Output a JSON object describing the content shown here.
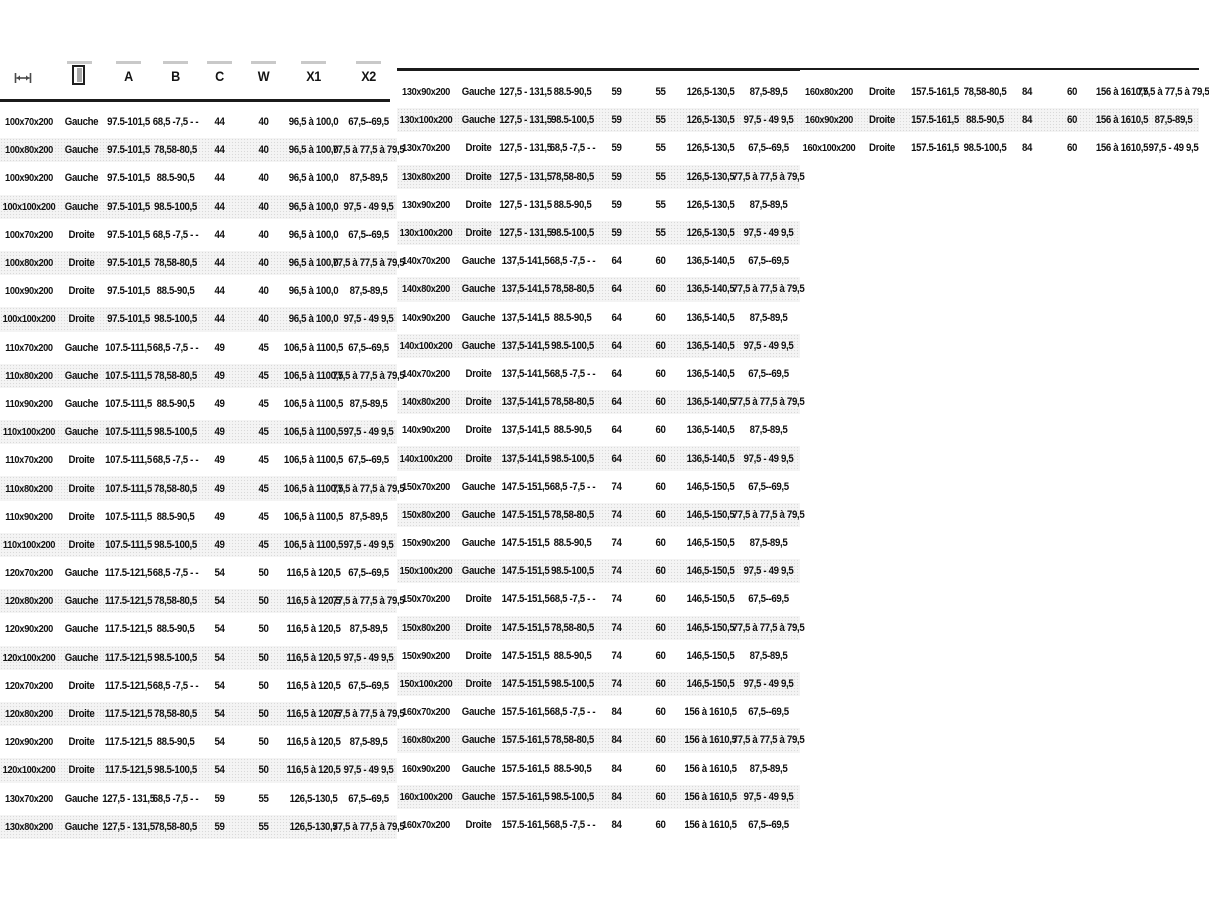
{
  "page": {
    "background": "#ffffff"
  },
  "colors": {
    "rule": "#1b1b1b",
    "stripe": "#f4f4f4",
    "text": "#101010",
    "header_bar": "#c9c9c9"
  },
  "table": {
    "header": {
      "icons": [
        "width-measure-icon",
        "door-icon"
      ],
      "labels": [
        "A",
        "B",
        "C",
        "W",
        "X1",
        "X2"
      ]
    },
    "column_ids": [
      "size",
      "side",
      "a",
      "b",
      "c",
      "w",
      "x1",
      "x2"
    ],
    "panels": [
      {
        "id": "left",
        "has_header": true,
        "rows": [
          [
            "100x70x200",
            "Gauche",
            "97.5-101,5",
            "68,5 -7,5 - -",
            "44",
            "40",
            "96,5 à 100,0",
            "67,5--69,5"
          ],
          [
            "100x80x200",
            "Gauche",
            "97.5-101,5",
            "78,58-80,5",
            "44",
            "40",
            "96,5 à 100,0",
            "77,5 à 77,5 à 79,5"
          ],
          [
            "100x90x200",
            "Gauche",
            "97.5-101,5",
            "88.5-90,5",
            "44",
            "40",
            "96,5 à 100,0",
            "87,5-89,5"
          ],
          [
            "100x100x200",
            "Gauche",
            "97.5-101,5",
            "98.5-100,5",
            "44",
            "40",
            "96,5 à 100,0",
            "97,5 - 49 9,5"
          ],
          [
            "100x70x200",
            "Droite",
            "97.5-101,5",
            "68,5 -7,5 - -",
            "44",
            "40",
            "96,5 à 100,0",
            "67,5--69,5"
          ],
          [
            "100x80x200",
            "Droite",
            "97.5-101,5",
            "78,58-80,5",
            "44",
            "40",
            "96,5 à 100,0",
            "77,5 à 77,5 à 79,5"
          ],
          [
            "100x90x200",
            "Droite",
            "97.5-101,5",
            "88.5-90,5",
            "44",
            "40",
            "96,5 à 100,0",
            "87,5-89,5"
          ],
          [
            "100x100x200",
            "Droite",
            "97.5-101,5",
            "98.5-100,5",
            "44",
            "40",
            "96,5 à 100,0",
            "97,5 - 49 9,5"
          ],
          [
            "110x70x200",
            "Gauche",
            "107.5-111,5",
            "68,5 -7,5 - -",
            "49",
            "45",
            "106,5 à 1100,5",
            "67,5--69,5"
          ],
          [
            "110x80x200",
            "Gauche",
            "107.5-111,5",
            "78,58-80,5",
            "49",
            "45",
            "106,5 à 1100,5",
            "77,5 à 77,5 à 79,5"
          ],
          [
            "110x90x200",
            "Gauche",
            "107.5-111,5",
            "88.5-90,5",
            "49",
            "45",
            "106,5 à 1100,5",
            "87,5-89,5"
          ],
          [
            "110x100x200",
            "Gauche",
            "107.5-111,5",
            "98.5-100,5",
            "49",
            "45",
            "106,5 à 1100,5",
            "97,5 - 49 9,5"
          ],
          [
            "110x70x200",
            "Droite",
            "107.5-111,5",
            "68,5 -7,5 - -",
            "49",
            "45",
            "106,5 à 1100,5",
            "67,5--69,5"
          ],
          [
            "110x80x200",
            "Droite",
            "107.5-111,5",
            "78,58-80,5",
            "49",
            "45",
            "106,5 à 1100,5",
            "77,5 à 77,5 à 79,5"
          ],
          [
            "110x90x200",
            "Droite",
            "107.5-111,5",
            "88.5-90,5",
            "49",
            "45",
            "106,5 à 1100,5",
            "87,5-89,5"
          ],
          [
            "110x100x200",
            "Droite",
            "107.5-111,5",
            "98.5-100,5",
            "49",
            "45",
            "106,5 à 1100,5",
            "97,5 - 49 9,5"
          ],
          [
            "120x70x200",
            "Gauche",
            "117.5-121,5",
            "68,5 -7,5 - -",
            "54",
            "50",
            "116,5 à 120,5",
            "67,5--69,5"
          ],
          [
            "120x80x200",
            "Gauche",
            "117.5-121,5",
            "78,58-80,5",
            "54",
            "50",
            "116,5 à 120,5",
            "77,5 à 77,5 à 79,5"
          ],
          [
            "120x90x200",
            "Gauche",
            "117.5-121,5",
            "88.5-90,5",
            "54",
            "50",
            "116,5 à 120,5",
            "87,5-89,5"
          ],
          [
            "120x100x200",
            "Gauche",
            "117.5-121,5",
            "98.5-100,5",
            "54",
            "50",
            "116,5 à 120,5",
            "97,5 - 49 9,5"
          ],
          [
            "120x70x200",
            "Droite",
            "117.5-121,5",
            "68,5 -7,5 - -",
            "54",
            "50",
            "116,5 à 120,5",
            "67,5--69,5"
          ],
          [
            "120x80x200",
            "Droite",
            "117.5-121,5",
            "78,58-80,5",
            "54",
            "50",
            "116,5 à 120,5",
            "77,5 à 77,5 à 79,5"
          ],
          [
            "120x90x200",
            "Droite",
            "117.5-121,5",
            "88.5-90,5",
            "54",
            "50",
            "116,5 à 120,5",
            "87,5-89,5"
          ],
          [
            "120x100x200",
            "Droite",
            "117.5-121,5",
            "98.5-100,5",
            "54",
            "50",
            "116,5 à 120,5",
            "97,5 - 49 9,5"
          ],
          [
            "130x70x200",
            "Gauche",
            "127,5 - 131,5",
            "68,5 -7,5 - -",
            "59",
            "55",
            "126,5-130,5",
            "67,5--69,5"
          ],
          [
            "130x80x200",
            "Gauche",
            "127,5 - 131,5",
            "78,58-80,5",
            "59",
            "55",
            "126,5-130,5",
            "77,5 à 77,5 à 79,5"
          ]
        ]
      },
      {
        "id": "middle",
        "has_header": false,
        "rows": [
          [
            "130x90x200",
            "Gauche",
            "127,5 - 131,5",
            "88.5-90,5",
            "59",
            "55",
            "126,5-130,5",
            "87,5-89,5"
          ],
          [
            "130x100x200",
            "Gauche",
            "127,5 - 131,5",
            "98.5-100,5",
            "59",
            "55",
            "126,5-130,5",
            "97,5 - 49 9,5"
          ],
          [
            "130x70x200",
            "Droite",
            "127,5 - 131,5",
            "68,5 -7,5 - -",
            "59",
            "55",
            "126,5-130,5",
            "67,5--69,5"
          ],
          [
            "130x80x200",
            "Droite",
            "127,5 - 131,5",
            "78,58-80,5",
            "59",
            "55",
            "126,5-130,5",
            "77,5 à 77,5 à 79,5"
          ],
          [
            "130x90x200",
            "Droite",
            "127,5 - 131,5",
            "88.5-90,5",
            "59",
            "55",
            "126,5-130,5",
            "87,5-89,5"
          ],
          [
            "130x100x200",
            "Droite",
            "127,5 - 131,5",
            "98.5-100,5",
            "59",
            "55",
            "126,5-130,5",
            "97,5 - 49 9,5"
          ],
          [
            "140x70x200",
            "Gauche",
            "137,5-141,5",
            "68,5 -7,5 - -",
            "64",
            "60",
            "136,5-140,5",
            "67,5--69,5"
          ],
          [
            "140x80x200",
            "Gauche",
            "137,5-141,5",
            "78,58-80,5",
            "64",
            "60",
            "136,5-140,5",
            "77,5 à 77,5 à 79,5"
          ],
          [
            "140x90x200",
            "Gauche",
            "137,5-141,5",
            "88.5-90,5",
            "64",
            "60",
            "136,5-140,5",
            "87,5-89,5"
          ],
          [
            "140x100x200",
            "Gauche",
            "137,5-141,5",
            "98.5-100,5",
            "64",
            "60",
            "136,5-140,5",
            "97,5 - 49 9,5"
          ],
          [
            "140x70x200",
            "Droite",
            "137,5-141,5",
            "68,5 -7,5 - -",
            "64",
            "60",
            "136,5-140,5",
            "67,5--69,5"
          ],
          [
            "140x80x200",
            "Droite",
            "137,5-141,5",
            "78,58-80,5",
            "64",
            "60",
            "136,5-140,5",
            "77,5 à 77,5 à 79,5"
          ],
          [
            "140x90x200",
            "Droite",
            "137,5-141,5",
            "88.5-90,5",
            "64",
            "60",
            "136,5-140,5",
            "87,5-89,5"
          ],
          [
            "140x100x200",
            "Droite",
            "137,5-141,5",
            "98.5-100,5",
            "64",
            "60",
            "136,5-140,5",
            "97,5 - 49 9,5"
          ],
          [
            "150x70x200",
            "Gauche",
            "147.5-151,5",
            "68,5 -7,5 - -",
            "74",
            "60",
            "146,5-150,5",
            "67,5--69,5"
          ],
          [
            "150x80x200",
            "Gauche",
            "147.5-151,5",
            "78,58-80,5",
            "74",
            "60",
            "146,5-150,5",
            "77,5 à 77,5 à 79,5"
          ],
          [
            "150x90x200",
            "Gauche",
            "147.5-151,5",
            "88.5-90,5",
            "74",
            "60",
            "146,5-150,5",
            "87,5-89,5"
          ],
          [
            "150x100x200",
            "Gauche",
            "147.5-151,5",
            "98.5-100,5",
            "74",
            "60",
            "146,5-150,5",
            "97,5 - 49 9,5"
          ],
          [
            "150x70x200",
            "Droite",
            "147.5-151,5",
            "68,5 -7,5 - -",
            "74",
            "60",
            "146,5-150,5",
            "67,5--69,5"
          ],
          [
            "150x80x200",
            "Droite",
            "147.5-151,5",
            "78,58-80,5",
            "74",
            "60",
            "146,5-150,5",
            "77,5 à 77,5 à 79,5"
          ],
          [
            "150x90x200",
            "Droite",
            "147.5-151,5",
            "88.5-90,5",
            "74",
            "60",
            "146,5-150,5",
            "87,5-89,5"
          ],
          [
            "150x100x200",
            "Droite",
            "147.5-151,5",
            "98.5-100,5",
            "74",
            "60",
            "146,5-150,5",
            "97,5 - 49 9,5"
          ],
          [
            "160x70x200",
            "Gauche",
            "157.5-161,5",
            "68,5 -7,5 - -",
            "84",
            "60",
            "156 à 1610,5",
            "67,5--69,5"
          ],
          [
            "160x80x200",
            "Gauche",
            "157.5-161,5",
            "78,58-80,5",
            "84",
            "60",
            "156 à 1610,5",
            "77,5 à 77,5 à 79,5"
          ],
          [
            "160x90x200",
            "Gauche",
            "157.5-161,5",
            "88.5-90,5",
            "84",
            "60",
            "156 à 1610,5",
            "87,5-89,5"
          ],
          [
            "160x100x200",
            "Gauche",
            "157.5-161,5",
            "98.5-100,5",
            "84",
            "60",
            "156 à 1610,5",
            "97,5 - 49 9,5"
          ],
          [
            "160x70x200",
            "Droite",
            "157.5-161,5",
            "68,5 -7,5 - -",
            "84",
            "60",
            "156 à 1610,5",
            "67,5--69,5"
          ]
        ]
      },
      {
        "id": "right",
        "has_header": false,
        "rows": [
          [
            "160x80x200",
            "Droite",
            "157.5-161,5",
            "78,58-80,5",
            "84",
            "60",
            "156 à 1610,5",
            "77,5 à 77,5 à 79,5"
          ],
          [
            "160x90x200",
            "Droite",
            "157.5-161,5",
            "88.5-90,5",
            "84",
            "60",
            "156 à 1610,5",
            "87,5-89,5"
          ],
          [
            "160x100x200",
            "Droite",
            "157.5-161,5",
            "98.5-100,5",
            "84",
            "60",
            "156 à 1610,5",
            "97,5 - 49 9,5"
          ]
        ]
      }
    ]
  }
}
